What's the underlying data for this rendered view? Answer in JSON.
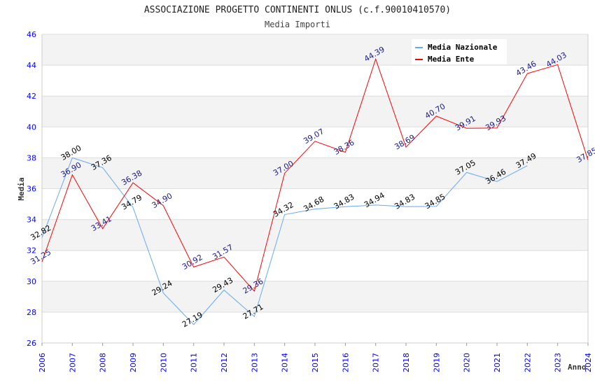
{
  "chart_data": {
    "type": "line",
    "title": "ASSOCIAZIONE PROGETTO CONTINENTI ONLUS (c.f.90010410570)",
    "subtitle": "Media Importi",
    "xlabel": "Anno",
    "ylabel": "Media",
    "ylim": [
      26,
      46
    ],
    "yticks": [
      26,
      28,
      30,
      32,
      34,
      36,
      38,
      40,
      42,
      44,
      46
    ],
    "x": [
      2006,
      2007,
      2008,
      2009,
      2010,
      2011,
      2012,
      2013,
      2014,
      2015,
      2016,
      2017,
      2018,
      2019,
      2020,
      2021,
      2022,
      2023,
      2024
    ],
    "grid": true,
    "legend_position": "top-right",
    "series": [
      {
        "name": "Media Nazionale",
        "color": "#66aaee",
        "label_color": "#000000",
        "values": [
          32.82,
          38.0,
          37.36,
          34.79,
          29.24,
          27.19,
          29.43,
          27.71,
          34.32,
          34.68,
          34.83,
          34.94,
          34.83,
          34.85,
          37.05,
          36.46,
          37.49,
          null,
          null
        ]
      },
      {
        "name": "Media Ente",
        "color": "#ff0000",
        "label_color": "#1a1a8c",
        "values": [
          31.25,
          36.9,
          33.41,
          36.38,
          34.9,
          30.92,
          31.57,
          29.36,
          37.0,
          39.07,
          38.36,
          44.39,
          38.69,
          40.7,
          39.91,
          39.93,
          43.46,
          44.03,
          37.85
        ],
        "hidden_labels": [
          17
        ]
      }
    ]
  }
}
